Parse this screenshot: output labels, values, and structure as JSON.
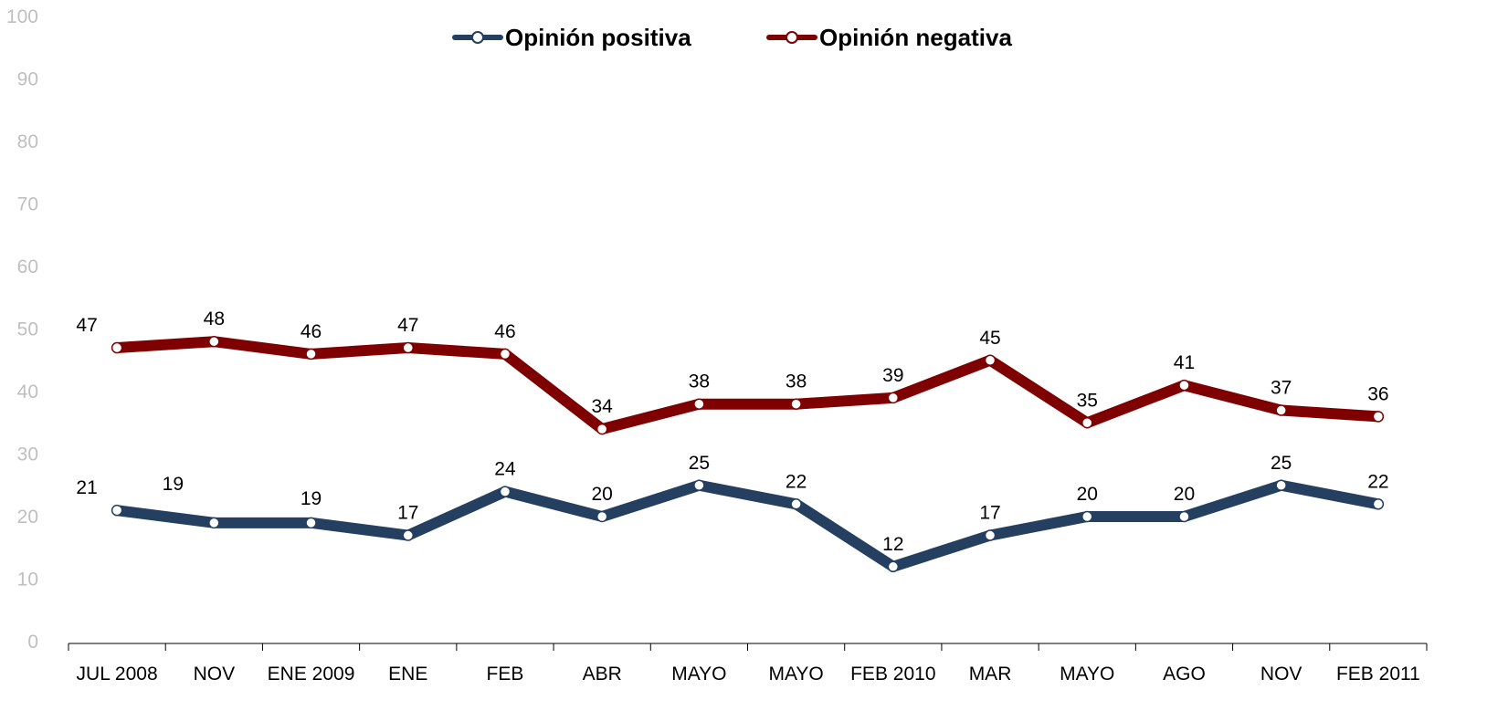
{
  "chart_data": {
    "type": "line",
    "categories": [
      "JUL 2008",
      "NOV",
      "ENE 2009",
      "ENE",
      "FEB",
      "ABR",
      "MAYO",
      "MAYO",
      "FEB 2010",
      "MAR",
      "MAYO",
      "AGO",
      "NOV",
      "FEB 2011"
    ],
    "series": [
      {
        "name": "Opinión positiva",
        "color": "#243f60",
        "values": [
          21,
          19,
          19,
          17,
          24,
          20,
          25,
          22,
          12,
          17,
          20,
          20,
          25,
          22
        ]
      },
      {
        "name": "Opinión negativa",
        "color": "#7f0000",
        "values": [
          47,
          48,
          46,
          47,
          46,
          34,
          38,
          38,
          39,
          45,
          35,
          41,
          37,
          36
        ]
      }
    ],
    "ylim": [
      0,
      100
    ],
    "yticks": [
      "0",
      "10",
      "20",
      "30",
      "40",
      "50",
      "60",
      "70",
      "80",
      "90",
      "100"
    ],
    "grid": false,
    "legend_position": "top-center",
    "data_labels": true
  }
}
